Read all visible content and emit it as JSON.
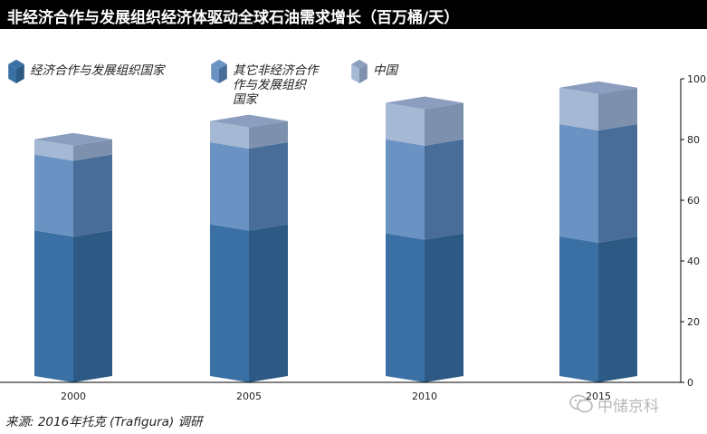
{
  "header": {
    "title": "非经济合作与发展组织经济体驱动全球石油需求增长（百万桶/天）"
  },
  "footer": {
    "source": "来源: 2016年托克 (Trafigura) 调研"
  },
  "watermark": {
    "text": "中储京科"
  },
  "colors": {
    "oecd_front": "#3b70a5",
    "oecd_side": "#2c5a84",
    "other_front": "#6a92c3",
    "other_side": "#476d98",
    "china_front": "#a5b8d4",
    "china_side": "#7d90ad",
    "china_top": "#8b9ec0"
  },
  "chart_data": {
    "type": "bar",
    "stacked": true,
    "three_d": true,
    "categories": [
      "2000",
      "2005",
      "2010",
      "2015"
    ],
    "series": [
      {
        "name": "经济合作与发展组织国家",
        "values": [
          48,
          50,
          47,
          46
        ]
      },
      {
        "name": "其它非经济合作与发展组织国家",
        "values": [
          25,
          27,
          31,
          37
        ]
      },
      {
        "name": "中国",
        "values": [
          5,
          7,
          12,
          12
        ]
      }
    ],
    "legend_labels": [
      [
        "经济合作与发展组织国家"
      ],
      [
        "其它非经济合作",
        "作与发展组织",
        "国家"
      ],
      [
        "中国"
      ]
    ],
    "yaxis": {
      "ticks": [
        "0",
        "20",
        "40",
        "60",
        "80",
        "100"
      ],
      "side": "right"
    },
    "ylim": [
      0,
      100
    ],
    "grid": false,
    "legend_position": "top"
  }
}
